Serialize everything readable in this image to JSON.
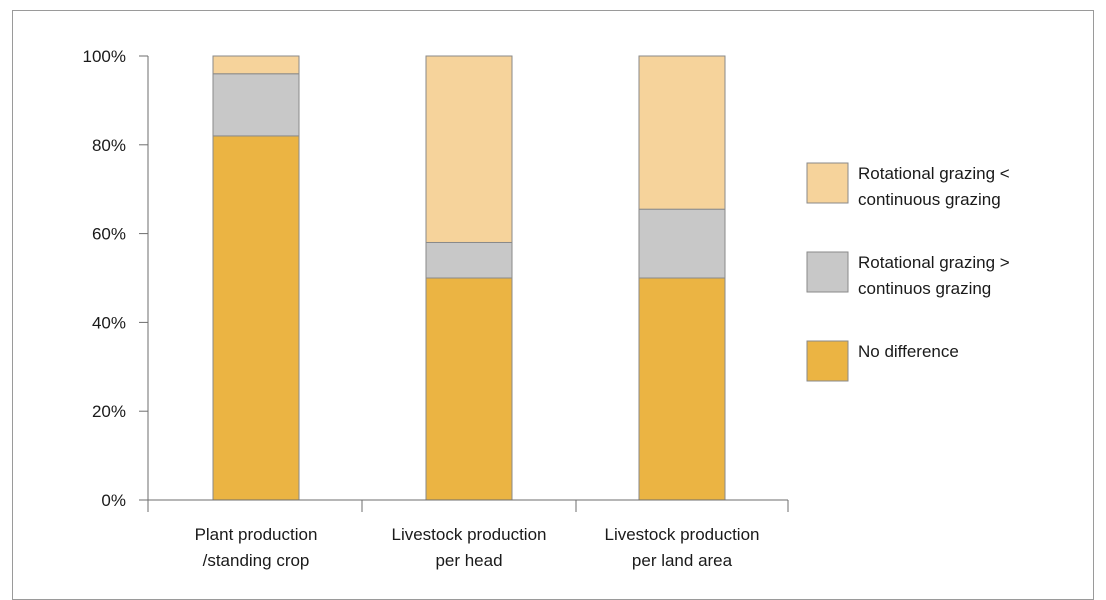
{
  "chart_data": {
    "type": "bar",
    "stacked": true,
    "categories": [
      [
        "Plant production",
        "/standing crop"
      ],
      [
        "Livestock production",
        "per head"
      ],
      [
        "Livestock production",
        "per land area"
      ]
    ],
    "series": [
      {
        "name": "No difference",
        "values": [
          82,
          50,
          50
        ],
        "color": "#EBB443"
      },
      {
        "name": "Rotational grazing > continuos grazing",
        "legend_lines": [
          "Rotational grazing >",
          "continuos grazing"
        ],
        "values": [
          14,
          8,
          15.5
        ],
        "color": "#C8C8C8"
      },
      {
        "name": "Rotational grazing < continuous grazing",
        "legend_lines": [
          "Rotational grazing <",
          "continuous grazing"
        ],
        "values": [
          4,
          42,
          34.5
        ],
        "color": "#F6D39B"
      }
    ],
    "yticks": [
      "0%",
      "20%",
      "40%",
      "60%",
      "80%",
      "100%"
    ],
    "ylim": [
      0,
      100
    ],
    "legend_position": "right",
    "grid": false
  }
}
